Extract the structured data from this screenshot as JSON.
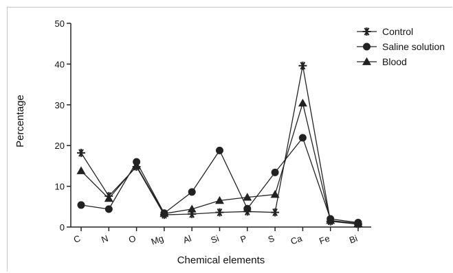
{
  "chart_data": {
    "type": "line",
    "categories": [
      "C",
      "N",
      "O",
      "Mg",
      "Al",
      "Si",
      "P",
      "S",
      "Ca",
      "Fe",
      "Bi"
    ],
    "xlabel": "Chemical elements",
    "ylabel": "Percentage",
    "ylim": [
      0,
      50
    ],
    "yticks": [
      0,
      10,
      20,
      30,
      40,
      50
    ],
    "grid": false,
    "legend_position": "top-right",
    "series": [
      {
        "name": "Control",
        "marker": "asterisk",
        "values": [
          18.2,
          7.6,
          14.8,
          3.0,
          3.2,
          3.6,
          3.8,
          3.6,
          39.6,
          1.4,
          0.7
        ]
      },
      {
        "name": "Saline solution",
        "marker": "circle",
        "values": [
          5.4,
          4.4,
          16.0,
          3.4,
          8.6,
          18.8,
          4.5,
          13.4,
          21.9,
          2.0,
          1.1
        ]
      },
      {
        "name": "Blood",
        "marker": "triangle",
        "values": [
          13.8,
          7.0,
          15.0,
          3.3,
          4.4,
          6.5,
          7.3,
          8.0,
          30.4,
          1.6,
          0.9
        ]
      }
    ]
  },
  "colors": {
    "line": "#222222",
    "axis": "#222222",
    "frame": "#c8c8c8"
  }
}
